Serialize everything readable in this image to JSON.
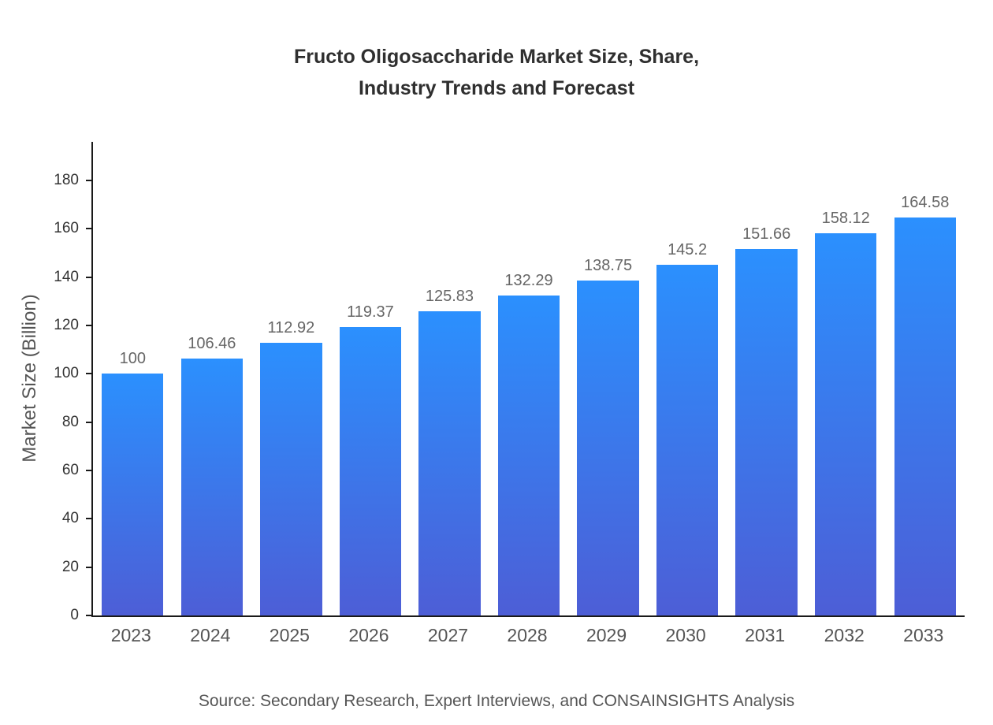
{
  "title": {
    "line1": "Fructo Oligosaccharide Market Size, Share,",
    "line2": "Industry Trends and Forecast"
  },
  "chart_data": {
    "type": "bar",
    "title": "Fructo Oligosaccharide Market Size, Share, Industry Trends and Forecast",
    "categories": [
      "2023",
      "2024",
      "2025",
      "2026",
      "2027",
      "2028",
      "2029",
      "2030",
      "2031",
      "2032",
      "2033"
    ],
    "values": [
      100,
      106.46,
      112.92,
      119.37,
      125.83,
      132.29,
      138.75,
      145.2,
      151.66,
      158.12,
      164.58
    ],
    "value_labels": [
      "100",
      "106.46",
      "112.92",
      "119.37",
      "125.83",
      "132.29",
      "138.75",
      "145.2",
      "151.66",
      "158.12",
      "164.58"
    ],
    "xlabel": "",
    "ylabel": "Market Size (Billion)",
    "ylim": [
      0,
      196
    ],
    "yticks": [
      0,
      20,
      40,
      60,
      80,
      100,
      120,
      140,
      160,
      180
    ],
    "grid": false,
    "legend": false,
    "bar_gradient_top": "#2b90fe",
    "bar_gradient_bottom": "#4d5ed6"
  },
  "source": "Source: Secondary Research, Expert Interviews, and CONSAINSIGHTS Analysis"
}
